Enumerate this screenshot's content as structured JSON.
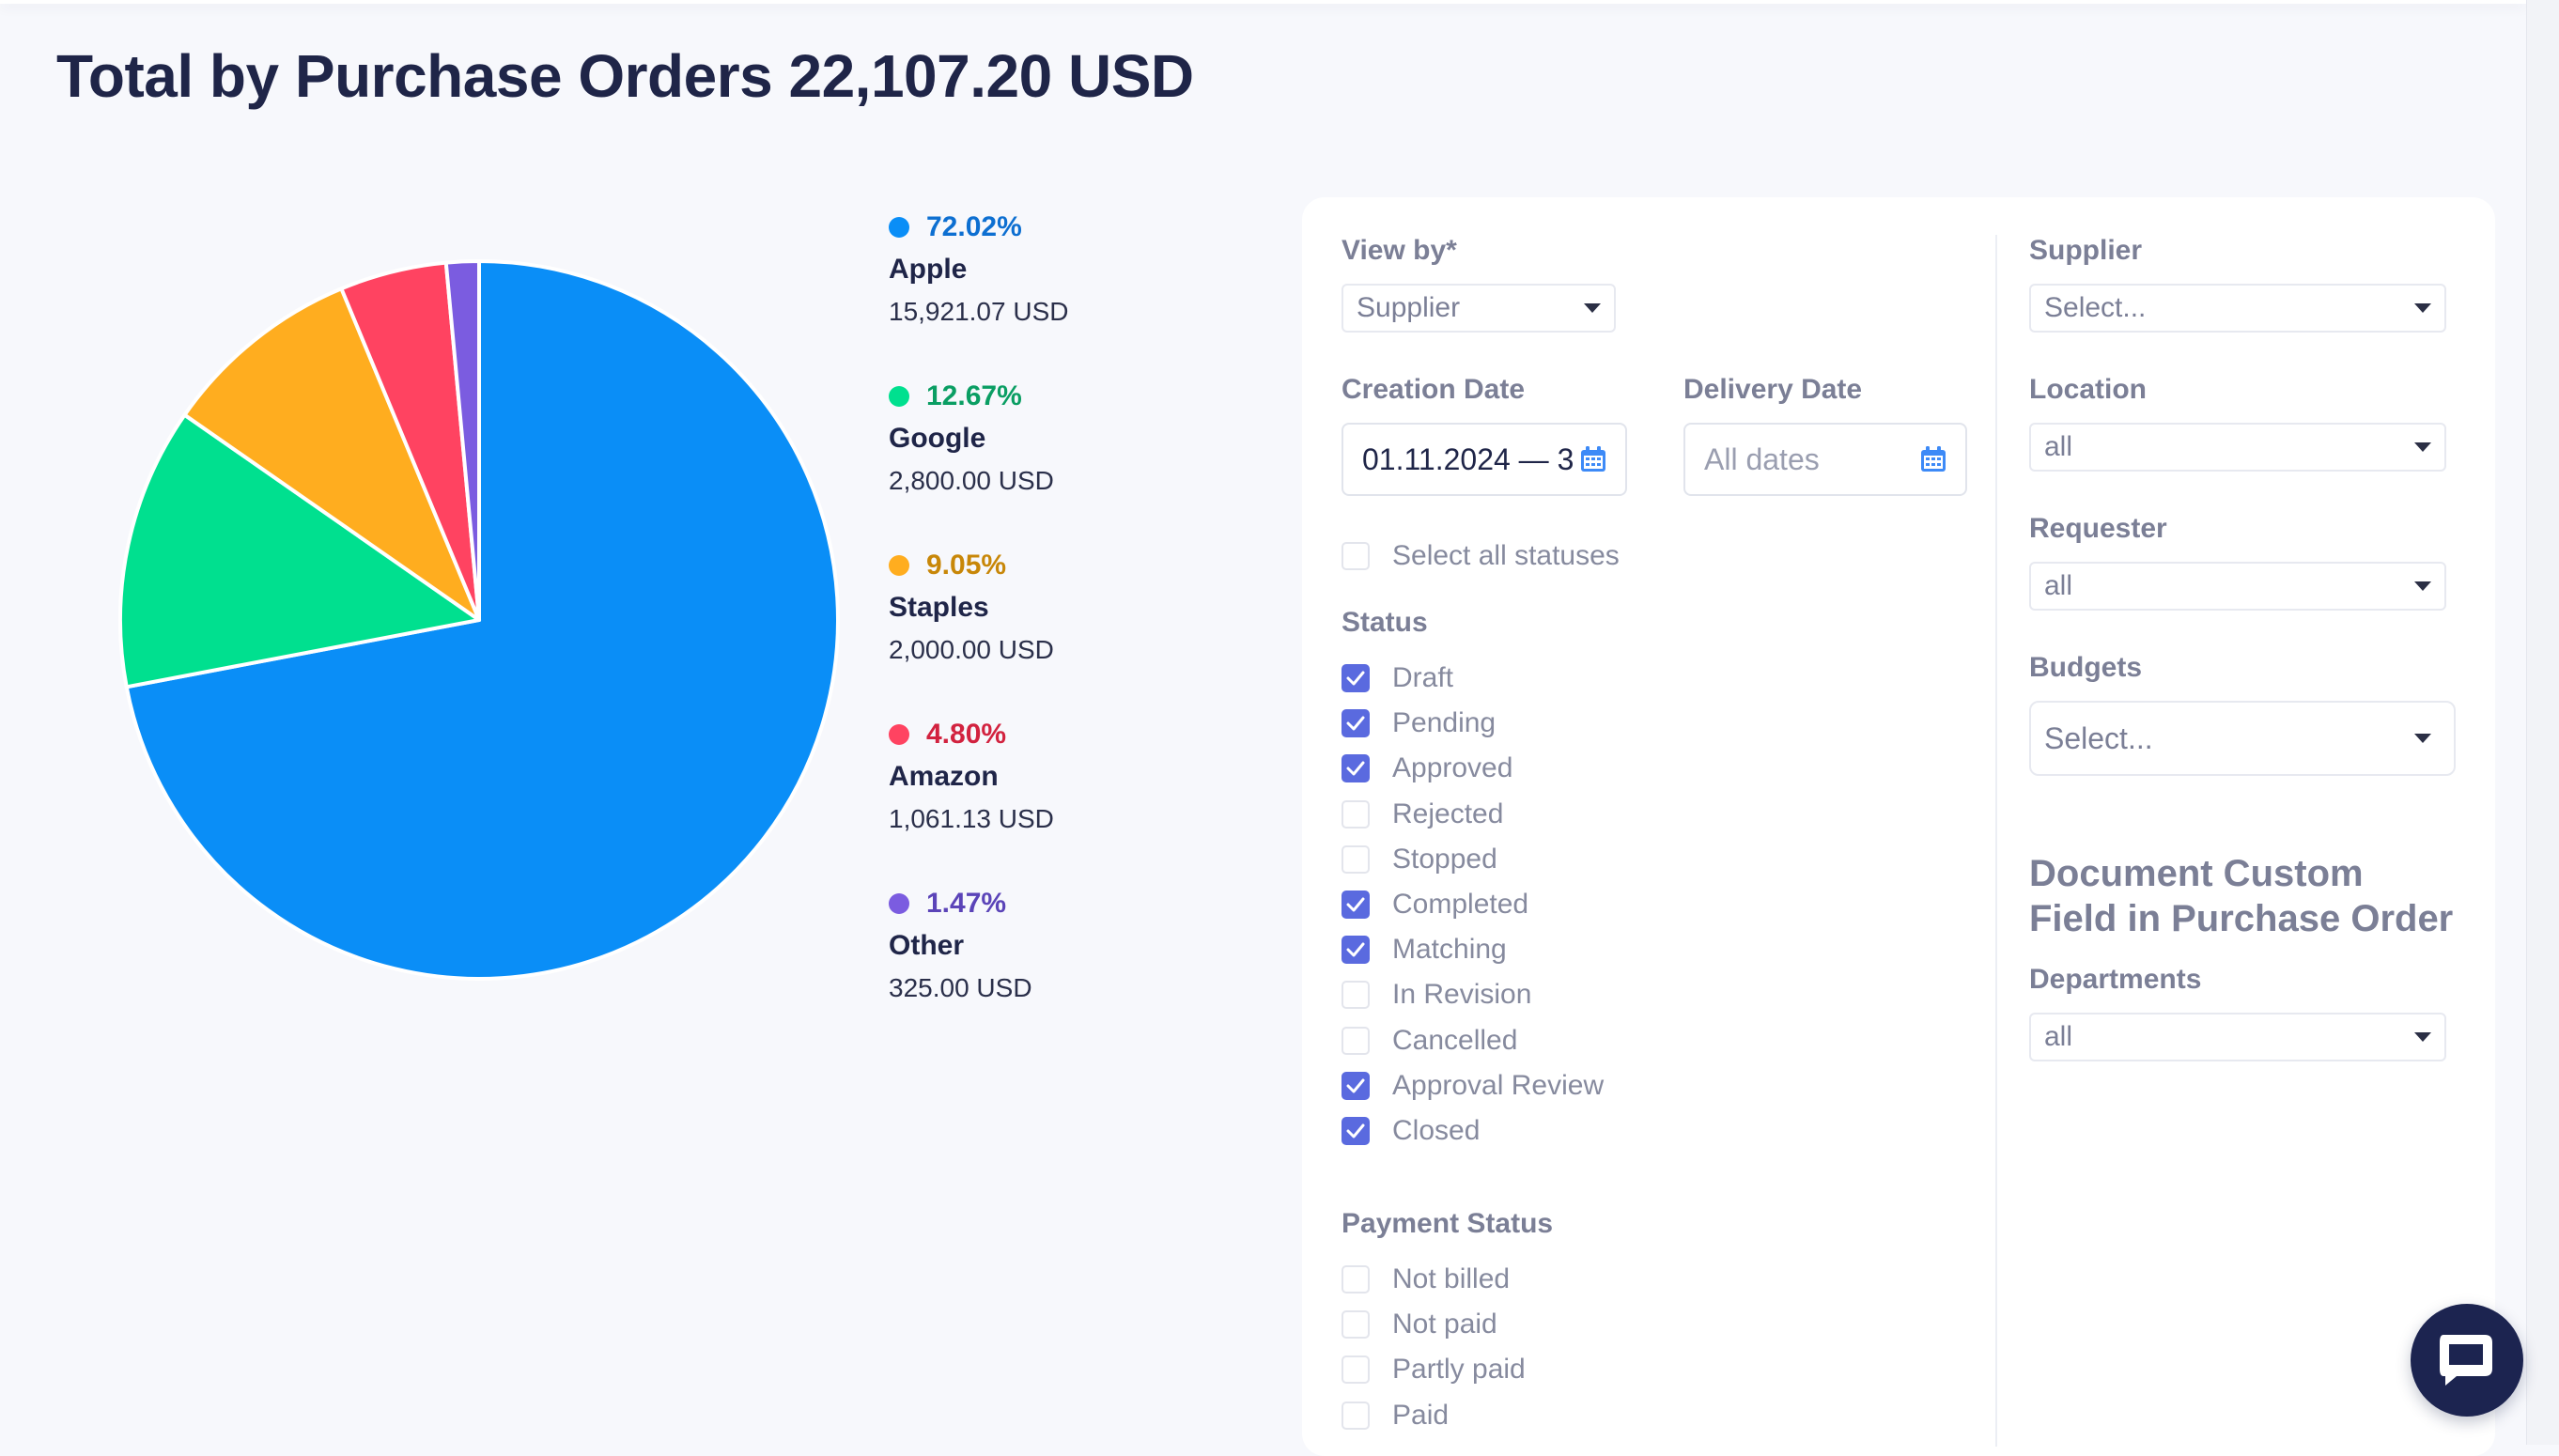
{
  "page_title": "Total by Purchase Orders 22,107.20 USD",
  "chart_data": {
    "type": "pie",
    "slices": [
      {
        "label": "Apple",
        "percent": 72.02,
        "percent_text": "72.02%",
        "amount_text": "15,921.07 USD",
        "color": "#0a8ef7",
        "text_color": "#0d6fd1"
      },
      {
        "label": "Google",
        "percent": 12.67,
        "percent_text": "12.67%",
        "amount_text": "2,800.00 USD",
        "color": "#00e08f",
        "text_color": "#0a9e63"
      },
      {
        "label": "Staples",
        "percent": 9.05,
        "percent_text": "9.05%",
        "amount_text": "2,000.00 USD",
        "color": "#ffad1f",
        "text_color": "#c88708"
      },
      {
        "label": "Amazon",
        "percent": 4.8,
        "percent_text": "4.80%",
        "amount_text": "1,061.13 USD",
        "color": "#ff4361",
        "text_color": "#d2223f"
      },
      {
        "label": "Other",
        "percent": 1.47,
        "percent_text": "1.47%",
        "amount_text": "325.00 USD",
        "color": "#7b5ce0",
        "text_color": "#5b44b8"
      }
    ]
  },
  "filters": {
    "view_by": {
      "label": "View by*",
      "value": "Supplier"
    },
    "creation_date": {
      "label": "Creation Date",
      "value": "01.11.2024 — 3"
    },
    "delivery_date": {
      "label": "Delivery Date",
      "placeholder": "All dates"
    },
    "select_all_statuses": "Select all statuses",
    "status": {
      "label": "Status",
      "items": [
        {
          "label": "Draft",
          "checked": true
        },
        {
          "label": "Pending",
          "checked": true
        },
        {
          "label": "Approved",
          "checked": true
        },
        {
          "label": "Rejected",
          "checked": false
        },
        {
          "label": "Stopped",
          "checked": false
        },
        {
          "label": "Completed",
          "checked": true
        },
        {
          "label": "Matching",
          "checked": true
        },
        {
          "label": "In Revision",
          "checked": false
        },
        {
          "label": "Cancelled",
          "checked": false
        },
        {
          "label": "Approval Review",
          "checked": true
        },
        {
          "label": "Closed",
          "checked": true
        }
      ]
    },
    "payment_status": {
      "label": "Payment Status",
      "items": [
        {
          "label": "Not billed",
          "checked": false
        },
        {
          "label": "Not paid",
          "checked": false
        },
        {
          "label": "Partly paid",
          "checked": false
        },
        {
          "label": "Paid",
          "checked": false
        }
      ]
    },
    "supplier": {
      "label": "Supplier",
      "value": "Select..."
    },
    "location": {
      "label": "Location",
      "value": "all"
    },
    "requester": {
      "label": "Requester",
      "value": "all"
    },
    "budgets": {
      "label": "Budgets",
      "value": "Select..."
    },
    "custom_fields": {
      "title_line1": "Document Custom",
      "title_line2": "Field in Purchase Order",
      "departments": {
        "label": "Departments",
        "value": "all"
      }
    }
  },
  "colors": {
    "accent": "#5a6adf",
    "calendar_icon": "#3d8af7",
    "chat_button": "#1c2450"
  },
  "icons": {
    "chat": "chat-bubble-icon",
    "calendar": "calendar-icon",
    "dropdown": "caret-down-icon"
  }
}
